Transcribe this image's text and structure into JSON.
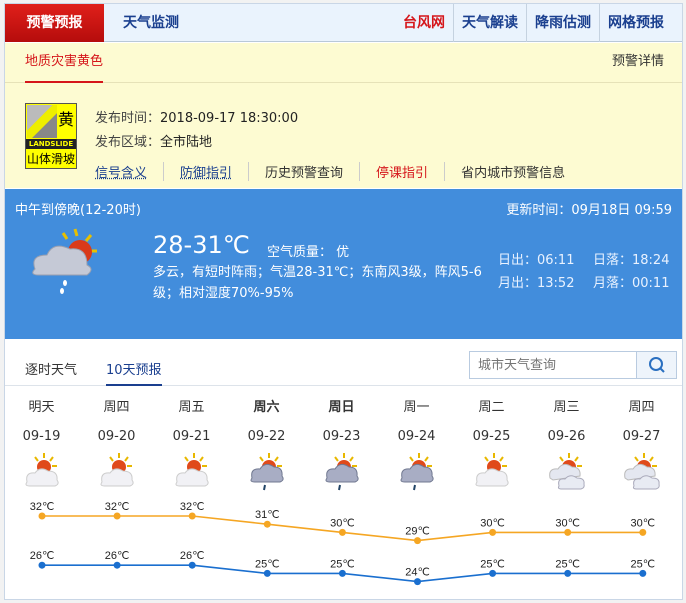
{
  "nav": {
    "active": "预警预报",
    "second": "天气监测",
    "right": [
      "台风网",
      "天气解读",
      "降雨估测",
      "网格预报"
    ]
  },
  "warning": {
    "tab": "地质灾害黄色",
    "detail": "预警详情",
    "badge": {
      "level": "黄",
      "en": "LANDSLIDE",
      "cn": "山体滑坡",
      "color": "#ffff00"
    },
    "time_label": "发布时间：",
    "time": "2018-09-17 18:30:00",
    "area_label": "发布区域：",
    "area": "全市陆地",
    "links": [
      "信号含义",
      "防御指引",
      "历史预警查询",
      "停课指引",
      "省内城市预警信息"
    ]
  },
  "current": {
    "period": "中午到傍晚(12-20时)",
    "update": "更新时间：09月18日 09:59",
    "temp": "28-31℃",
    "air": "空气质量： 优",
    "desc": "多云，有短时阵雨；气温28-31℃；东南风3级，阵风5-6级；相对湿度70%-95%",
    "sunrise": "日出：06:11",
    "sunset": "日落：18:24",
    "moonrise": "月出：13:52",
    "moonset": "月落：00:11",
    "icon": "cloud-sun-rain-icon"
  },
  "forecast_tabs": [
    "逐时天气",
    "10天预报"
  ],
  "search": {
    "placeholder": "城市天气查询"
  },
  "days": [
    {
      "week": "明天",
      "date": "09-19",
      "icon": "sun-cloud"
    },
    {
      "week": "周四",
      "date": "09-20",
      "icon": "sun-cloud"
    },
    {
      "week": "周五",
      "date": "09-21",
      "icon": "sun-cloud"
    },
    {
      "week": "周六",
      "date": "09-22",
      "icon": "cloud-rain",
      "bold": true
    },
    {
      "week": "周日",
      "date": "09-23",
      "icon": "cloud-rain",
      "bold": true
    },
    {
      "week": "周一",
      "date": "09-24",
      "icon": "cloud-rain"
    },
    {
      "week": "周二",
      "date": "09-25",
      "icon": "sun-cloud"
    },
    {
      "week": "周三",
      "date": "09-26",
      "icon": "sun-clouds"
    },
    {
      "week": "周四",
      "date": "09-27",
      "icon": "sun-clouds"
    }
  ],
  "chart_data": {
    "type": "line",
    "categories": [
      "09-19",
      "09-20",
      "09-21",
      "09-22",
      "09-23",
      "09-24",
      "09-25",
      "09-26",
      "09-27"
    ],
    "series": [
      {
        "values": [
          32,
          32,
          32,
          31,
          30,
          29,
          30,
          30,
          30
        ],
        "color": "#f5a623"
      },
      {
        "values": [
          26,
          26,
          26,
          25,
          25,
          24,
          25,
          25,
          25
        ],
        "color": "#1a6fcf"
      }
    ],
    "unit": "℃"
  }
}
